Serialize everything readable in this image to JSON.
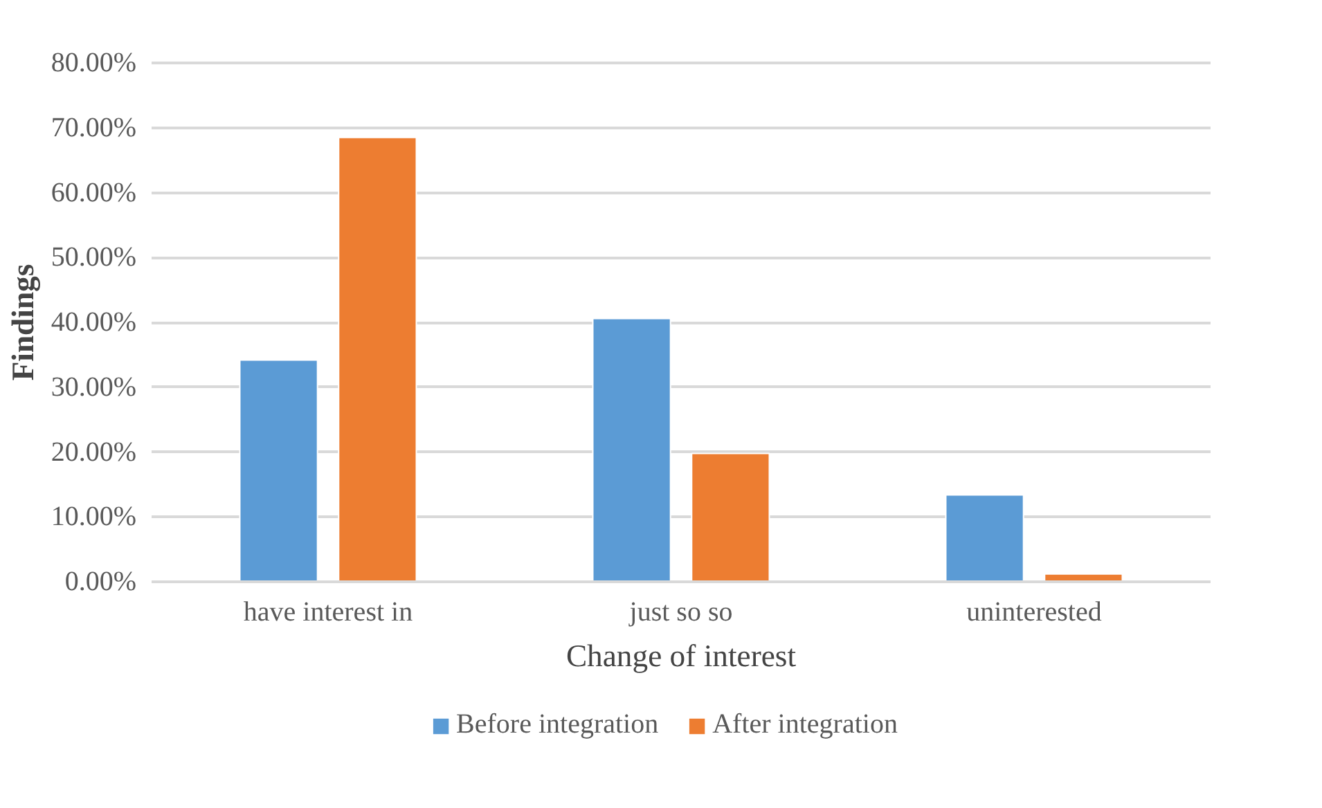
{
  "chart_data": {
    "type": "bar",
    "xlabel": "Change of interest",
    "ylabel": "Findings",
    "categories": [
      "have interest in",
      "just so so",
      "uninterested"
    ],
    "series": [
      {
        "name": "Before integration",
        "color": "#5b9bd5",
        "values": [
          34.2,
          40.6,
          13.4
        ]
      },
      {
        "name": "After integration",
        "color": "#ed7d31",
        "values": [
          68.5,
          19.8,
          1.2
        ]
      }
    ],
    "ylim": [
      0,
      80
    ],
    "yticks": [
      {
        "value": 0,
        "label": "0.00%"
      },
      {
        "value": 10,
        "label": "10.00%"
      },
      {
        "value": 20,
        "label": "20.00%"
      },
      {
        "value": 30,
        "label": "30.00%"
      },
      {
        "value": 40,
        "label": "40.00%"
      },
      {
        "value": 50,
        "label": "50.00%"
      },
      {
        "value": 60,
        "label": "60.00%"
      },
      {
        "value": 70,
        "label": "70.00%"
      },
      {
        "value": 80,
        "label": "80.00%"
      }
    ],
    "grid": "y",
    "legend": "bottom"
  }
}
